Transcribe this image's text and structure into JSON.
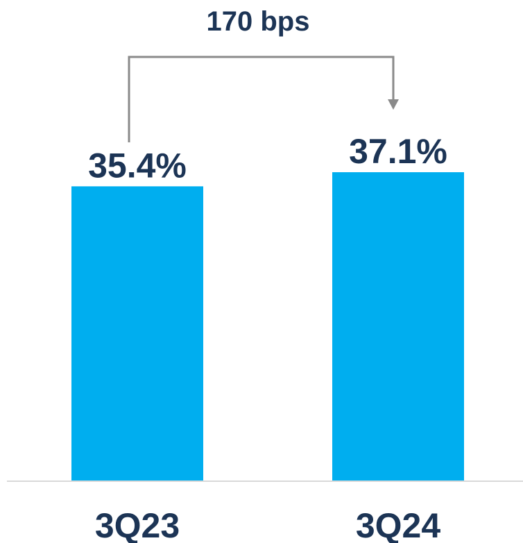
{
  "chart_data": {
    "type": "bar",
    "title": "",
    "xlabel": "",
    "ylabel": "",
    "categories": [
      "3Q23",
      "3Q24"
    ],
    "values": [
      35.4,
      37.1
    ],
    "data_labels": [
      "35.4%",
      "37.1%"
    ],
    "ylim": [
      0,
      37.1
    ],
    "grid": false,
    "legend": "none",
    "annotation": {
      "text": "170 bps",
      "from": "3Q23",
      "to": "3Q24"
    }
  },
  "colors": {
    "bar": "#00aeef",
    "text": "#1c3455",
    "connector": "#8a8a8a",
    "axis": "#d9d9d9"
  }
}
